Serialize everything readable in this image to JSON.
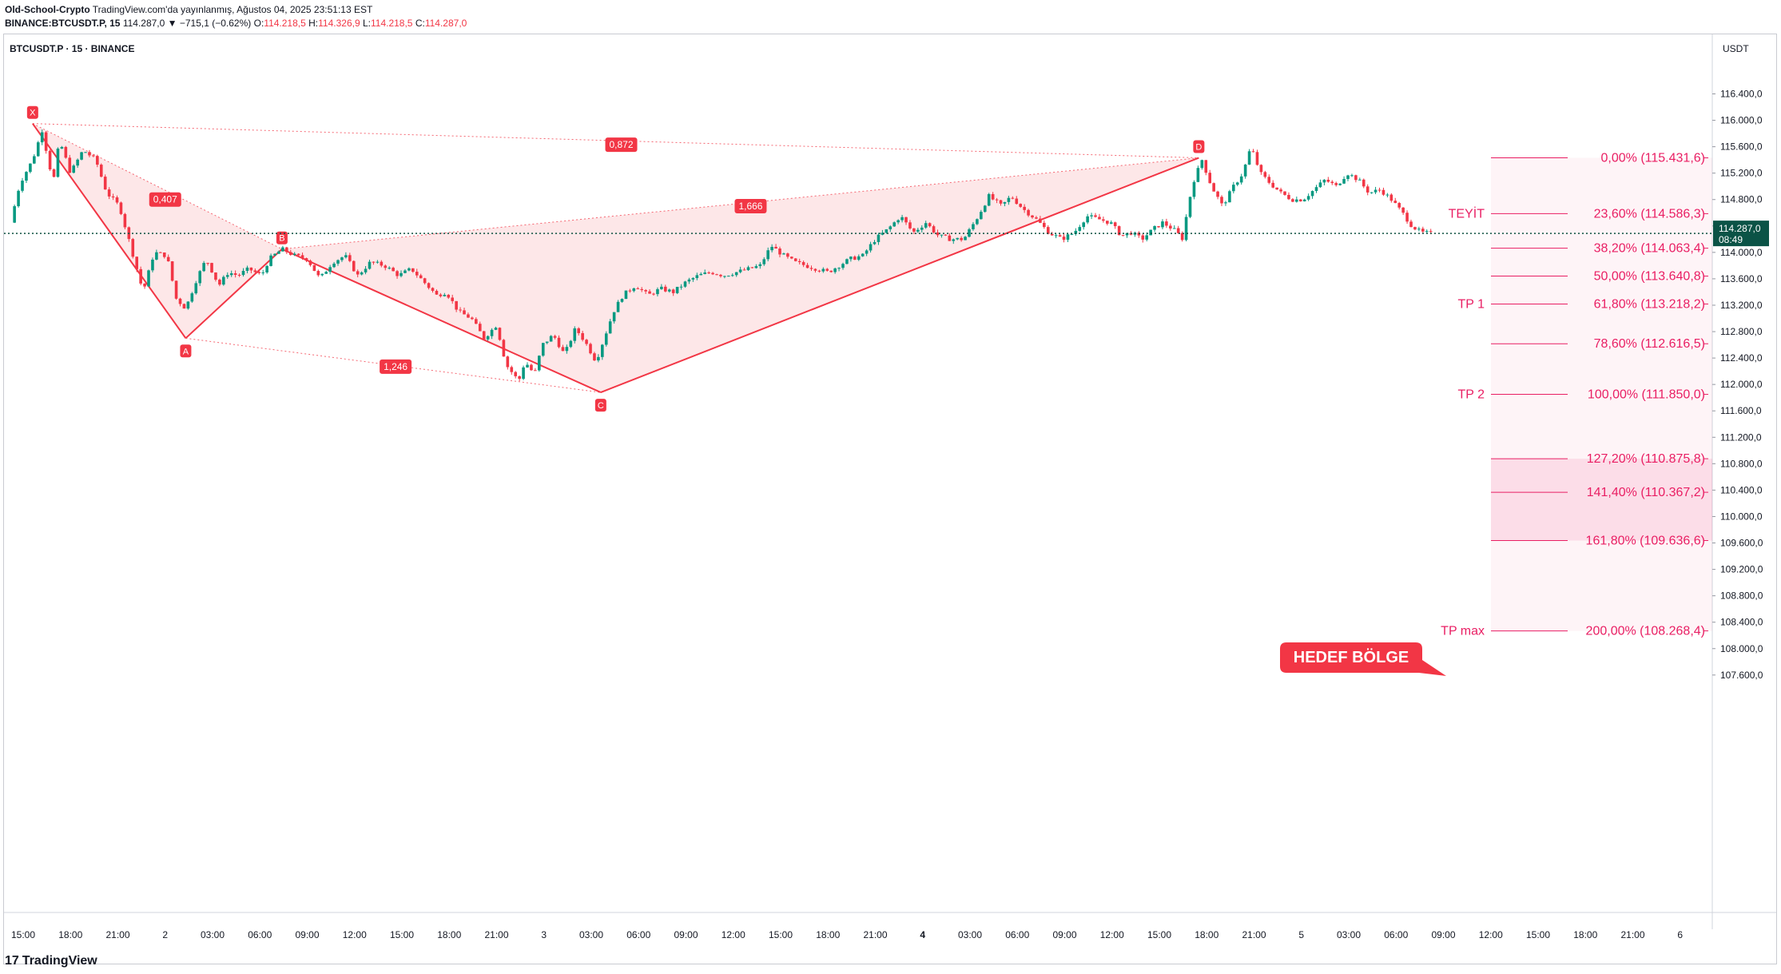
{
  "header": {
    "author": "Old-School-Crypto",
    "published": "TradingView.com'da yayınlanmış, Ağustos 04, 2025 23:51:13 EST",
    "symbol_line": "BINANCE:BTCUSDT.P, 15",
    "last": "114.287,0",
    "change": "▼ −715,1 (−0.62%)",
    "o_label": "O:",
    "o": "114.218,5",
    "h_label": "H:",
    "h": "114.326,9",
    "l_label": "L:",
    "l": "114.218,5",
    "c_label": "C:",
    "c": "114.287,0"
  },
  "chart_label": "BTCUSDT.P · 15 · BINANCE",
  "currency": "USDT",
  "footer": {
    "brand": "TradingView",
    "brand_mark": "17"
  },
  "chart_data": {
    "type": "candlestick",
    "title": "BTCUSDT.P · 15 · BINANCE",
    "ylim": [
      107600,
      116900
    ],
    "y_ticks": [
      {
        "v": 116400,
        "label": "116.400,0"
      },
      {
        "v": 116000,
        "label": "116.000,0"
      },
      {
        "v": 115600,
        "label": "115.600,0"
      },
      {
        "v": 115200,
        "label": "115.200,0"
      },
      {
        "v": 114800,
        "label": "114.800,0"
      },
      {
        "v": 114400,
        "label": "114.400,0"
      },
      {
        "v": 114000,
        "label": "114.000,0"
      },
      {
        "v": 113600,
        "label": "113.600,0"
      },
      {
        "v": 113200,
        "label": "113.200,0"
      },
      {
        "v": 112800,
        "label": "112.800,0"
      },
      {
        "v": 112400,
        "label": "112.400,0"
      },
      {
        "v": 112000,
        "label": "112.000,0"
      },
      {
        "v": 111600,
        "label": "111.600,0"
      },
      {
        "v": 111200,
        "label": "111.200,0"
      },
      {
        "v": 110800,
        "label": "110.800,0"
      },
      {
        "v": 110400,
        "label": "110.400,0"
      },
      {
        "v": 110000,
        "label": "110.000,0"
      },
      {
        "v": 109600,
        "label": "109.600,0"
      },
      {
        "v": 109200,
        "label": "109.200,0"
      },
      {
        "v": 108800,
        "label": "108.800,0"
      },
      {
        "v": 108400,
        "label": "108.400,0"
      },
      {
        "v": 108000,
        "label": "108.000,0"
      },
      {
        "v": 107600,
        "label": "107.600,0"
      }
    ],
    "x_ticks": [
      {
        "h": 0,
        "label": "15:00",
        "bold": false
      },
      {
        "h": 3,
        "label": "18:00",
        "bold": false
      },
      {
        "h": 6,
        "label": "21:00",
        "bold": false
      },
      {
        "h": 9,
        "label": "2",
        "bold": false
      },
      {
        "h": 12,
        "label": "03:00",
        "bold": false
      },
      {
        "h": 15,
        "label": "06:00",
        "bold": false
      },
      {
        "h": 18,
        "label": "09:00",
        "bold": false
      },
      {
        "h": 21,
        "label": "12:00",
        "bold": false
      },
      {
        "h": 24,
        "label": "15:00",
        "bold": false
      },
      {
        "h": 27,
        "label": "18:00",
        "bold": false
      },
      {
        "h": 30,
        "label": "21:00",
        "bold": false
      },
      {
        "h": 33,
        "label": "3",
        "bold": false
      },
      {
        "h": 36,
        "label": "03:00",
        "bold": false
      },
      {
        "h": 39,
        "label": "06:00",
        "bold": false
      },
      {
        "h": 42,
        "label": "09:00",
        "bold": false
      },
      {
        "h": 45,
        "label": "12:00",
        "bold": false
      },
      {
        "h": 48,
        "label": "15:00",
        "bold": false
      },
      {
        "h": 51,
        "label": "18:00",
        "bold": false
      },
      {
        "h": 54,
        "label": "21:00",
        "bold": false
      },
      {
        "h": 57,
        "label": "4",
        "bold": true
      },
      {
        "h": 60,
        "label": "03:00",
        "bold": false
      },
      {
        "h": 63,
        "label": "06:00",
        "bold": false
      },
      {
        "h": 66,
        "label": "09:00",
        "bold": false
      },
      {
        "h": 69,
        "label": "12:00",
        "bold": false
      },
      {
        "h": 72,
        "label": "15:00",
        "bold": false
      },
      {
        "h": 75,
        "label": "18:00",
        "bold": false
      },
      {
        "h": 78,
        "label": "21:00",
        "bold": false
      },
      {
        "h": 81,
        "label": "5",
        "bold": false
      },
      {
        "h": 84,
        "label": "03:00",
        "bold": false
      },
      {
        "h": 87,
        "label": "06:00",
        "bold": false
      },
      {
        "h": 90,
        "label": "09:00",
        "bold": false
      },
      {
        "h": 93,
        "label": "12:00",
        "bold": false
      },
      {
        "h": 96,
        "label": "15:00",
        "bold": false
      },
      {
        "h": 99,
        "label": "18:00",
        "bold": false
      },
      {
        "h": 102,
        "label": "21:00",
        "bold": false
      },
      {
        "h": 105,
        "label": "6",
        "bold": false
      }
    ],
    "anchors": [
      {
        "h": -0.8,
        "p": 114450
      },
      {
        "h": -0.2,
        "p": 115050
      },
      {
        "h": 0.6,
        "p": 115400
      },
      {
        "h": 1.2,
        "p": 115850
      },
      {
        "h": 1.9,
        "p": 115050
      },
      {
        "h": 2.3,
        "p": 115700
      },
      {
        "h": 3.0,
        "p": 115200
      },
      {
        "h": 3.8,
        "p": 115550
      },
      {
        "h": 4.6,
        "p": 115400
      },
      {
        "h": 5.3,
        "p": 114900
      },
      {
        "h": 6.1,
        "p": 114700
      },
      {
        "h": 6.8,
        "p": 114100
      },
      {
        "h": 7.6,
        "p": 113400
      },
      {
        "h": 8.3,
        "p": 114000
      },
      {
        "h": 9.1,
        "p": 113950
      },
      {
        "h": 9.7,
        "p": 113300
      },
      {
        "h": 10.3,
        "p": 113150
      },
      {
        "h": 11.0,
        "p": 113600
      },
      {
        "h": 11.6,
        "p": 113900
      },
      {
        "h": 12.4,
        "p": 113500
      },
      {
        "h": 13.0,
        "p": 113700
      },
      {
        "h": 13.6,
        "p": 113650
      },
      {
        "h": 14.3,
        "p": 113750
      },
      {
        "h": 15.1,
        "p": 113650
      },
      {
        "h": 15.6,
        "p": 113900
      },
      {
        "h": 16.4,
        "p": 114050
      },
      {
        "h": 17.2,
        "p": 113950
      },
      {
        "h": 18.0,
        "p": 113900
      },
      {
        "h": 18.8,
        "p": 113600
      },
      {
        "h": 19.6,
        "p": 113850
      },
      {
        "h": 20.4,
        "p": 113950
      },
      {
        "h": 21.2,
        "p": 113650
      },
      {
        "h": 22.0,
        "p": 113850
      },
      {
        "h": 22.9,
        "p": 113800
      },
      {
        "h": 23.8,
        "p": 113650
      },
      {
        "h": 24.6,
        "p": 113750
      },
      {
        "h": 25.4,
        "p": 113550
      },
      {
        "h": 26.2,
        "p": 113350
      },
      {
        "h": 26.8,
        "p": 113400
      },
      {
        "h": 27.6,
        "p": 113100
      },
      {
        "h": 28.4,
        "p": 113000
      },
      {
        "h": 29.2,
        "p": 112700
      },
      {
        "h": 30.0,
        "p": 112900
      },
      {
        "h": 30.6,
        "p": 112300
      },
      {
        "h": 31.4,
        "p": 112050
      },
      {
        "h": 31.8,
        "p": 112350
      },
      {
        "h": 32.4,
        "p": 112150
      },
      {
        "h": 32.9,
        "p": 112600
      },
      {
        "h": 33.6,
        "p": 112750
      },
      {
        "h": 34.3,
        "p": 112450
      },
      {
        "h": 35.0,
        "p": 112850
      },
      {
        "h": 35.6,
        "p": 112650
      },
      {
        "h": 36.3,
        "p": 112350
      },
      {
        "h": 36.6,
        "p": 112550
      },
      {
        "h": 37.4,
        "p": 113100
      },
      {
        "h": 38.0,
        "p": 113350
      },
      {
        "h": 38.8,
        "p": 113500
      },
      {
        "h": 39.6,
        "p": 113350
      },
      {
        "h": 40.4,
        "p": 113450
      },
      {
        "h": 41.2,
        "p": 113400
      },
      {
        "h": 42.0,
        "p": 113550
      },
      {
        "h": 42.8,
        "p": 113650
      },
      {
        "h": 43.6,
        "p": 113700
      },
      {
        "h": 44.4,
        "p": 113650
      },
      {
        "h": 45.2,
        "p": 113700
      },
      {
        "h": 46.0,
        "p": 113750
      },
      {
        "h": 46.7,
        "p": 113800
      },
      {
        "h": 47.4,
        "p": 114100
      },
      {
        "h": 48.2,
        "p": 113950
      },
      {
        "h": 48.9,
        "p": 113850
      },
      {
        "h": 49.6,
        "p": 113800
      },
      {
        "h": 50.3,
        "p": 113750
      },
      {
        "h": 51.0,
        "p": 113700
      },
      {
        "h": 51.7,
        "p": 113800
      },
      {
        "h": 52.4,
        "p": 113900
      },
      {
        "h": 53.2,
        "p": 113950
      },
      {
        "h": 54.0,
        "p": 114200
      },
      {
        "h": 54.8,
        "p": 114350
      },
      {
        "h": 55.6,
        "p": 114550
      },
      {
        "h": 56.4,
        "p": 114300
      },
      {
        "h": 57.2,
        "p": 114450
      },
      {
        "h": 58.0,
        "p": 114250
      },
      {
        "h": 58.8,
        "p": 114200
      },
      {
        "h": 59.6,
        "p": 114200
      },
      {
        "h": 60.4,
        "p": 114500
      },
      {
        "h": 61.2,
        "p": 114850
      },
      {
        "h": 62.0,
        "p": 114700
      },
      {
        "h": 62.6,
        "p": 114850
      },
      {
        "h": 63.4,
        "p": 114650
      },
      {
        "h": 64.2,
        "p": 114500
      },
      {
        "h": 65.0,
        "p": 114300
      },
      {
        "h": 65.8,
        "p": 114200
      },
      {
        "h": 66.6,
        "p": 114300
      },
      {
        "h": 67.4,
        "p": 114550
      },
      {
        "h": 68.2,
        "p": 114500
      },
      {
        "h": 68.9,
        "p": 114450
      },
      {
        "h": 69.6,
        "p": 114250
      },
      {
        "h": 70.2,
        "p": 114300
      },
      {
        "h": 70.9,
        "p": 114200
      },
      {
        "h": 71.6,
        "p": 114350
      },
      {
        "h": 72.2,
        "p": 114450
      },
      {
        "h": 72.9,
        "p": 114350
      },
      {
        "h": 73.5,
        "p": 114200
      },
      {
        "h": 73.8,
        "p": 114700
      },
      {
        "h": 74.2,
        "p": 115100
      },
      {
        "h": 74.7,
        "p": 115400
      },
      {
        "h": 75.3,
        "p": 115000
      },
      {
        "h": 76.0,
        "p": 114700
      },
      {
        "h": 76.7,
        "p": 115000
      },
      {
        "h": 77.3,
        "p": 115200
      },
      {
        "h": 77.8,
        "p": 115600
      },
      {
        "h": 78.4,
        "p": 115200
      },
      {
        "h": 79.0,
        "p": 115050
      },
      {
        "h": 79.7,
        "p": 114900
      },
      {
        "h": 80.4,
        "p": 114800
      },
      {
        "h": 81.1,
        "p": 114800
      },
      {
        "h": 81.8,
        "p": 114950
      },
      {
        "h": 82.5,
        "p": 115100
      },
      {
        "h": 83.2,
        "p": 115000
      },
      {
        "h": 83.9,
        "p": 115200
      },
      {
        "h": 84.6,
        "p": 115100
      },
      {
        "h": 85.3,
        "p": 114900
      },
      {
        "h": 86.0,
        "p": 114950
      },
      {
        "h": 86.7,
        "p": 114800
      },
      {
        "h": 87.4,
        "p": 114600
      },
      {
        "h": 88.0,
        "p": 114400
      },
      {
        "h": 88.6,
        "p": 114300
      },
      {
        "h": 89.3,
        "p": 114287
      }
    ],
    "harmonic_pattern": {
      "points": [
        {
          "id": "X",
          "h": 0.6,
          "p": 115950
        },
        {
          "id": "A",
          "h": 10.3,
          "p": 112700
        },
        {
          "id": "B",
          "h": 16.4,
          "p": 114050
        },
        {
          "id": "C",
          "h": 36.6,
          "p": 111880
        },
        {
          "id": "D",
          "h": 74.5,
          "p": 115431.6
        }
      ],
      "ratios": [
        {
          "label": "0,407",
          "h": 9.0,
          "p": 114800
        },
        {
          "label": "1,246",
          "h": 23.6,
          "p": 112270
        },
        {
          "label": "1,666",
          "h": 46.1,
          "p": 114700
        },
        {
          "label": "0,872",
          "h": 37.9,
          "p": 115630
        }
      ],
      "color": "#f23645",
      "fill": "rgba(242,54,69,0.12)"
    },
    "fib_levels": [
      {
        "ratio_label": "0,00% (115.431,6)",
        "price": 115431.6,
        "tag": ""
      },
      {
        "ratio_label": "23,60% (114.586,3)",
        "price": 114586.3,
        "tag": "TEYİT"
      },
      {
        "ratio_label": "38,20% (114.063,4)",
        "price": 114063.4,
        "tag": ""
      },
      {
        "ratio_label": "50,00% (113.640,8)",
        "price": 113640.8,
        "tag": ""
      },
      {
        "ratio_label": "61,80% (113.218,2)",
        "price": 113218.2,
        "tag": "TP 1"
      },
      {
        "ratio_label": "78,60% (112.616,5)",
        "price": 112616.5,
        "tag": ""
      },
      {
        "ratio_label": "100,00% (111.850,0)",
        "price": 111850.0,
        "tag": "TP 2"
      },
      {
        "ratio_label": "127,20% (110.875,8)",
        "price": 110875.8,
        "tag": ""
      },
      {
        "ratio_label": "141,40% (110.367,2)",
        "price": 110367.2,
        "tag": ""
      },
      {
        "ratio_label": "161,80% (109.636,6)",
        "price": 109636.6,
        "tag": ""
      },
      {
        "ratio_label": "200,00% (108.268,4)",
        "price": 108268.4,
        "tag": "TP max"
      }
    ],
    "target_zone": {
      "from": 109636.6,
      "to": 110875.8,
      "label": "HEDEF BÖLGE"
    },
    "current_price": {
      "price": 114287.0,
      "label": "114.287,0",
      "countdown": "08:49"
    },
    "colors": {
      "up": "#089981",
      "down": "#f23645",
      "fib": "#e91e63",
      "bg": "#ffffff"
    }
  }
}
